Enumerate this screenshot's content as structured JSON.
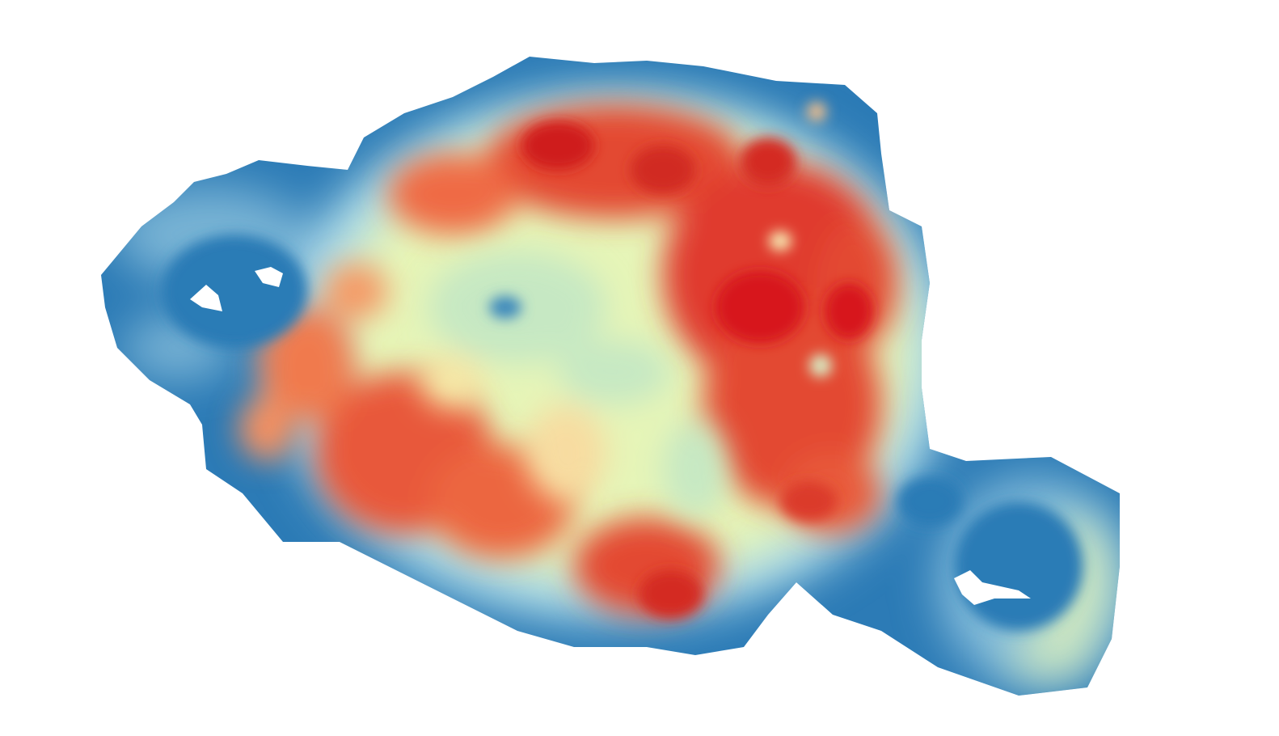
{
  "map": {
    "type": "density-heatmap",
    "background_color": "#ffffff",
    "color_ramp": [
      "#2c7bb6",
      "#abd9e9",
      "#ffffbf",
      "#fdae61",
      "#d7191c"
    ],
    "outside_color": "#ffffff"
  }
}
